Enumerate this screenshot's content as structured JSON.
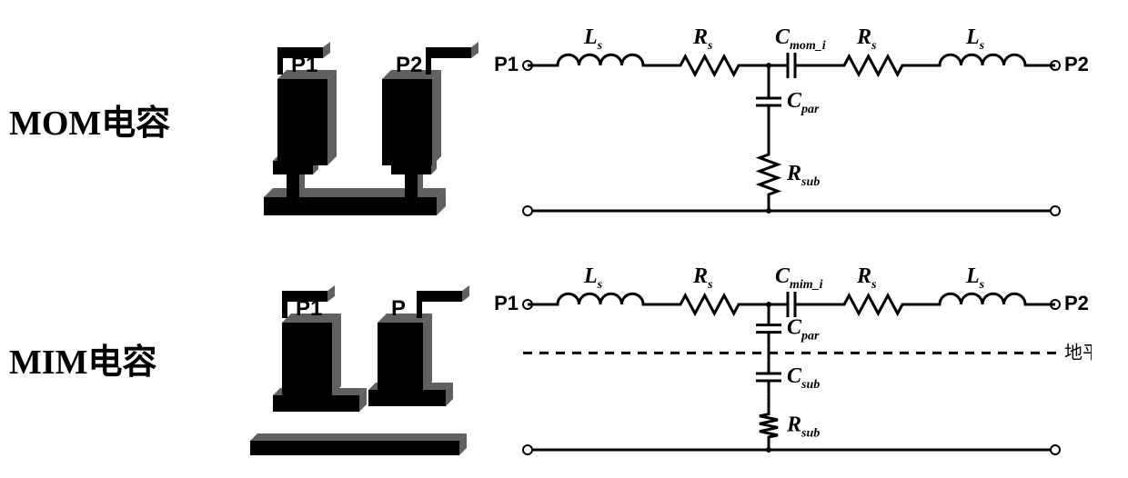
{
  "rows": [
    {
      "title": "MOM电容",
      "structure": {
        "type": "mom",
        "port1_label": "P1",
        "port2_label": "P2",
        "fill": "#000000",
        "shadow": "#606060"
      },
      "circuit": {
        "port1": "P1",
        "port2": "P2",
        "ground_plane_label": "",
        "dashed_ground_plane": false,
        "series_top": [
          {
            "kind": "inductor",
            "label_main": "L",
            "label_sub": "s"
          },
          {
            "kind": "resistor",
            "label_main": "R",
            "label_sub": "s"
          },
          {
            "kind": "capacitor",
            "label_main": "C",
            "label_sub": "mom_i",
            "interplate": false
          },
          {
            "kind": "resistor",
            "label_main": "R",
            "label_sub": "s"
          },
          {
            "kind": "inductor",
            "label_main": "L",
            "label_sub": "s"
          }
        ],
        "shunt": [
          {
            "kind": "capacitor",
            "label_main": "C",
            "label_sub": "par"
          },
          {
            "kind": "resistor",
            "label_main": "R",
            "label_sub": "sub"
          }
        ],
        "stroke": "#000000",
        "stroke_width": 3
      }
    },
    {
      "title": "MIM电容",
      "structure": {
        "type": "mim",
        "port1_label": "P1",
        "port2_label": "P",
        "fill": "#000000",
        "shadow": "#606060"
      },
      "circuit": {
        "port1": "P1",
        "port2": "P2",
        "ground_plane_label": "地平面",
        "dashed_ground_plane": true,
        "series_top": [
          {
            "kind": "inductor",
            "label_main": "L",
            "label_sub": "s"
          },
          {
            "kind": "resistor",
            "label_main": "R",
            "label_sub": "s"
          },
          {
            "kind": "capacitor",
            "label_main": "C",
            "label_sub": "mim_i",
            "interplate": false
          },
          {
            "kind": "resistor",
            "label_main": "R",
            "label_sub": "s"
          },
          {
            "kind": "inductor",
            "label_main": "L",
            "label_sub": "s"
          }
        ],
        "shunt": [
          {
            "kind": "capacitor",
            "label_main": "C",
            "label_sub": "par"
          },
          {
            "kind": "capacitor",
            "label_main": "C",
            "label_sub": "sub"
          },
          {
            "kind": "resistor",
            "label_main": "R",
            "label_sub": "sub"
          }
        ],
        "stroke": "#000000",
        "stroke_width": 3
      }
    }
  ]
}
